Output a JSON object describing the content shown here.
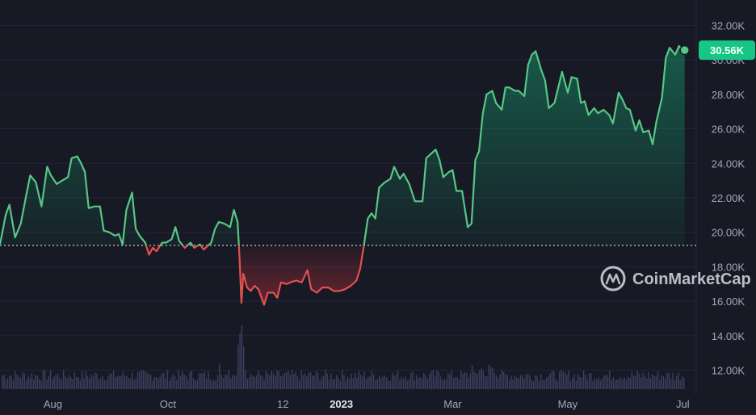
{
  "chart_data": {
    "type": "area",
    "y_axis": {
      "ticks": [
        12000,
        14000,
        16000,
        18000,
        20000,
        22000,
        24000,
        26000,
        28000,
        30000,
        32000
      ],
      "tick_labels": [
        "12.00K",
        "14.00K",
        "16.00K",
        "18.00K",
        "20.00K",
        "22.00K",
        "24.00K",
        "26.00K",
        "28.00K",
        "30.00K",
        "32.00K"
      ],
      "range": [
        11000,
        33000
      ],
      "position": "right"
    },
    "x_axis": {
      "ticks": [
        {
          "label": "Aug",
          "x": "2022-08-01",
          "bold": false
        },
        {
          "label": "Oct",
          "x": "2022-10-01",
          "bold": false
        },
        {
          "label": "12",
          "x": "2022-12-01",
          "bold": false
        },
        {
          "label": "2023",
          "x": "2023-01-01",
          "bold": true
        },
        {
          "label": "Mar",
          "x": "2023-03-01",
          "bold": false
        },
        {
          "label": "May",
          "x": "2023-05-01",
          "bold": false
        },
        {
          "label": "Jul",
          "x": "2023-07-01",
          "bold": false
        }
      ],
      "range": [
        "2022-07-04",
        "2023-07-03"
      ]
    },
    "baseline": 19240,
    "last_price_label": "30.56K",
    "colors": {
      "up": "#16c784",
      "up_line": "#56c785",
      "down": "#ea3943",
      "down_line": "#e0524f",
      "volume": "#3b4161",
      "grid": "#22263a",
      "background": "#171924"
    },
    "series": [
      {
        "values": [
          [
            "2022-07-04",
            19300
          ],
          [
            "2022-07-07",
            21000
          ],
          [
            "2022-07-09",
            21600
          ],
          [
            "2022-07-12",
            19700
          ],
          [
            "2022-07-15",
            20500
          ],
          [
            "2022-07-18",
            22200
          ],
          [
            "2022-07-20",
            23300
          ],
          [
            "2022-07-23",
            22900
          ],
          [
            "2022-07-26",
            21500
          ],
          [
            "2022-07-29",
            23800
          ],
          [
            "2022-07-31",
            23300
          ],
          [
            "2022-08-03",
            22800
          ],
          [
            "2022-08-06",
            23000
          ],
          [
            "2022-08-09",
            23200
          ],
          [
            "2022-08-11",
            24300
          ],
          [
            "2022-08-14",
            24400
          ],
          [
            "2022-08-16",
            24000
          ],
          [
            "2022-08-18",
            23500
          ],
          [
            "2022-08-20",
            21400
          ],
          [
            "2022-08-23",
            21500
          ],
          [
            "2022-08-26",
            21500
          ],
          [
            "2022-08-28",
            20100
          ],
          [
            "2022-08-31",
            20000
          ],
          [
            "2022-09-03",
            19800
          ],
          [
            "2022-09-05",
            19900
          ],
          [
            "2022-09-07",
            19300
          ],
          [
            "2022-09-09",
            21300
          ],
          [
            "2022-09-12",
            22300
          ],
          [
            "2022-09-14",
            20200
          ],
          [
            "2022-09-16",
            19800
          ],
          [
            "2022-09-19",
            19400
          ],
          [
            "2022-09-21",
            18700
          ],
          [
            "2022-09-23",
            19100
          ],
          [
            "2022-09-25",
            18900
          ],
          [
            "2022-09-28",
            19400
          ],
          [
            "2022-09-30",
            19400
          ],
          [
            "2022-10-03",
            19600
          ],
          [
            "2022-10-05",
            20300
          ],
          [
            "2022-10-07",
            19500
          ],
          [
            "2022-10-10",
            19100
          ],
          [
            "2022-10-13",
            19400
          ],
          [
            "2022-10-15",
            19100
          ],
          [
            "2022-10-18",
            19300
          ],
          [
            "2022-10-20",
            19000
          ],
          [
            "2022-10-22",
            19200
          ],
          [
            "2022-10-24",
            19400
          ],
          [
            "2022-10-26",
            20200
          ],
          [
            "2022-10-28",
            20600
          ],
          [
            "2022-10-31",
            20500
          ],
          [
            "2022-11-03",
            20300
          ],
          [
            "2022-11-05",
            21300
          ],
          [
            "2022-11-07",
            20600
          ],
          [
            "2022-11-08",
            18500
          ],
          [
            "2022-11-09",
            15900
          ],
          [
            "2022-11-10",
            17600
          ],
          [
            "2022-11-12",
            16800
          ],
          [
            "2022-11-14",
            16600
          ],
          [
            "2022-11-16",
            16900
          ],
          [
            "2022-11-18",
            16700
          ],
          [
            "2022-11-21",
            15800
          ],
          [
            "2022-11-23",
            16500
          ],
          [
            "2022-11-26",
            16500
          ],
          [
            "2022-11-28",
            16200
          ],
          [
            "2022-11-30",
            17100
          ],
          [
            "2022-12-03",
            17000
          ],
          [
            "2022-12-05",
            17100
          ],
          [
            "2022-12-08",
            17200
          ],
          [
            "2022-12-11",
            17100
          ],
          [
            "2022-12-14",
            17800
          ],
          [
            "2022-12-16",
            16700
          ],
          [
            "2022-12-19",
            16500
          ],
          [
            "2022-12-22",
            16800
          ],
          [
            "2022-12-25",
            16800
          ],
          [
            "2022-12-28",
            16600
          ],
          [
            "2022-12-31",
            16600
          ],
          [
            "2023-01-03",
            16700
          ],
          [
            "2023-01-06",
            16900
          ],
          [
            "2023-01-09",
            17200
          ],
          [
            "2023-01-11",
            17900
          ],
          [
            "2023-01-13",
            19300
          ],
          [
            "2023-01-15",
            20800
          ],
          [
            "2023-01-17",
            21100
          ],
          [
            "2023-01-19",
            20800
          ],
          [
            "2023-01-21",
            22600
          ],
          [
            "2023-01-24",
            22900
          ],
          [
            "2023-01-27",
            23100
          ],
          [
            "2023-01-29",
            23800
          ],
          [
            "2023-02-01",
            23100
          ],
          [
            "2023-02-03",
            23400
          ],
          [
            "2023-02-06",
            22800
          ],
          [
            "2023-02-09",
            21800
          ],
          [
            "2023-02-11",
            21800
          ],
          [
            "2023-02-13",
            21800
          ],
          [
            "2023-02-15",
            24300
          ],
          [
            "2023-02-17",
            24500
          ],
          [
            "2023-02-20",
            24800
          ],
          [
            "2023-02-22",
            24200
          ],
          [
            "2023-02-24",
            23200
          ],
          [
            "2023-02-27",
            23500
          ],
          [
            "2023-03-01",
            23600
          ],
          [
            "2023-03-03",
            22400
          ],
          [
            "2023-03-06",
            22400
          ],
          [
            "2023-03-09",
            20300
          ],
          [
            "2023-03-11",
            20500
          ],
          [
            "2023-03-13",
            24200
          ],
          [
            "2023-03-15",
            24700
          ],
          [
            "2023-03-17",
            26900
          ],
          [
            "2023-03-19",
            28000
          ],
          [
            "2023-03-22",
            28200
          ],
          [
            "2023-03-24",
            27500
          ],
          [
            "2023-03-27",
            27100
          ],
          [
            "2023-03-29",
            28400
          ],
          [
            "2023-03-31",
            28400
          ],
          [
            "2023-04-03",
            28200
          ],
          [
            "2023-04-05",
            28200
          ],
          [
            "2023-04-08",
            27900
          ],
          [
            "2023-04-10",
            29700
          ],
          [
            "2023-04-12",
            30300
          ],
          [
            "2023-04-14",
            30500
          ],
          [
            "2023-04-17",
            29400
          ],
          [
            "2023-04-19",
            28800
          ],
          [
            "2023-04-21",
            27200
          ],
          [
            "2023-04-24",
            27500
          ],
          [
            "2023-04-26",
            28400
          ],
          [
            "2023-04-28",
            29300
          ],
          [
            "2023-05-01",
            28100
          ],
          [
            "2023-05-03",
            29000
          ],
          [
            "2023-05-06",
            28900
          ],
          [
            "2023-05-08",
            27500
          ],
          [
            "2023-05-10",
            27600
          ],
          [
            "2023-05-12",
            26800
          ],
          [
            "2023-05-15",
            27200
          ],
          [
            "2023-05-17",
            26900
          ],
          [
            "2023-05-20",
            27100
          ],
          [
            "2023-05-23",
            26800
          ],
          [
            "2023-05-25",
            26300
          ],
          [
            "2023-05-28",
            28100
          ],
          [
            "2023-05-30",
            27700
          ],
          [
            "2023-06-01",
            27200
          ],
          [
            "2023-06-03",
            27100
          ],
          [
            "2023-06-06",
            25900
          ],
          [
            "2023-06-08",
            26500
          ],
          [
            "2023-06-10",
            25800
          ],
          [
            "2023-06-13",
            25900
          ],
          [
            "2023-06-15",
            25100
          ],
          [
            "2023-06-17",
            26400
          ],
          [
            "2023-06-20",
            27800
          ],
          [
            "2023-06-22",
            30100
          ],
          [
            "2023-06-24",
            30700
          ],
          [
            "2023-06-27",
            30300
          ],
          [
            "2023-06-29",
            30800
          ],
          [
            "2023-07-01",
            30500
          ],
          [
            "2023-07-02",
            30560
          ]
        ]
      }
    ]
  },
  "watermark": {
    "text": "CoinMarketCap",
    "icon": "coinmarketcap-logo-icon"
  }
}
